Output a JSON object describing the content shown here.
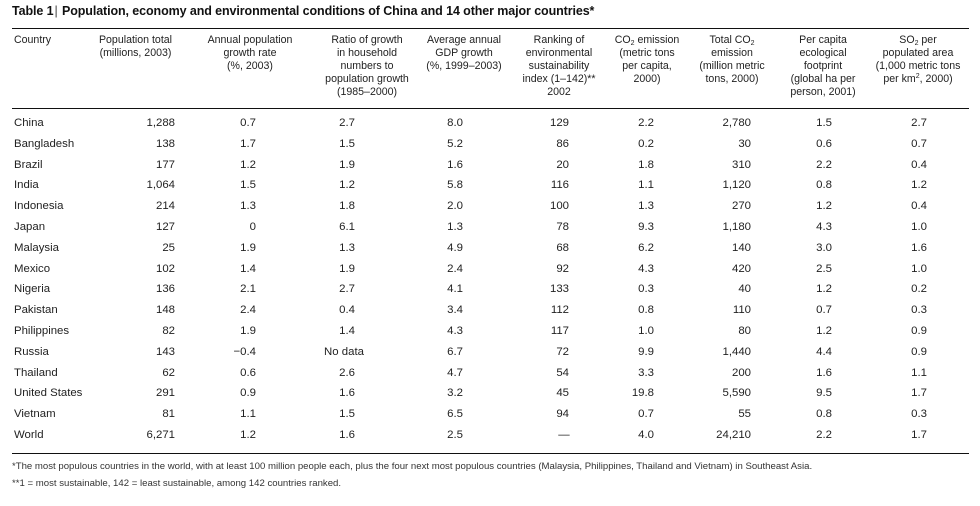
{
  "table": {
    "title_label": "Table 1",
    "title_text": "Population, economy and environmental conditions of China and 14 other major countries*",
    "headers": [
      {
        "lines": [
          "Country"
        ]
      },
      {
        "lines": [
          "Population total",
          "(millions, 2003)"
        ]
      },
      {
        "lines": [
          "Annual population",
          "growth rate",
          "(%, 2003)"
        ]
      },
      {
        "lines": [
          "Ratio of growth",
          "in household",
          "numbers to",
          "population growth",
          "(1985–2000)"
        ]
      },
      {
        "lines": [
          "Average annual",
          "GDP growth",
          "(%, 1999–2003)"
        ]
      },
      {
        "lines": [
          "Ranking of",
          "environmental",
          "sustainability",
          "index (1–142)**",
          "2002"
        ]
      },
      {
        "lines": [
          "CO₂ emission",
          "(metric tons",
          "per capita,",
          "2000)"
        ]
      },
      {
        "lines": [
          "Total CO₂",
          "emission",
          "(million metric",
          "tons, 2000)"
        ]
      },
      {
        "lines": [
          "Per capita",
          "ecological",
          "footprint",
          "(global ha per",
          "person, 2001)"
        ]
      },
      {
        "lines": [
          "SO₂ per",
          "populated area",
          "(1,000 metric tons",
          "per km², 2000)"
        ]
      }
    ],
    "rows": [
      [
        "China",
        "1,288",
        "0.7",
        "2.7",
        "8.0",
        "129",
        "2.2",
        "2,780",
        "1.5",
        "2.7"
      ],
      [
        "Bangladesh",
        "138",
        "1.7",
        "1.5",
        "5.2",
        "86",
        "0.2",
        "30",
        "0.6",
        "0.7"
      ],
      [
        "Brazil",
        "177",
        "1.2",
        "1.9",
        "1.6",
        "20",
        "1.8",
        "310",
        "2.2",
        "0.4"
      ],
      [
        "India",
        "1,064",
        "1.5",
        "1.2",
        "5.8",
        "116",
        "1.1",
        "1,120",
        "0.8",
        "1.2"
      ],
      [
        "Indonesia",
        "214",
        "1.3",
        "1.8",
        "2.0",
        "100",
        "1.3",
        "270",
        "1.2",
        "0.4"
      ],
      [
        "Japan",
        "127",
        "0",
        "6.1",
        "1.3",
        "78",
        "9.3",
        "1,180",
        "4.3",
        "1.0"
      ],
      [
        "Malaysia",
        "25",
        "1.9",
        "1.3",
        "4.9",
        "68",
        "6.2",
        "140",
        "3.0",
        "1.6"
      ],
      [
        "Mexico",
        "102",
        "1.4",
        "1.9",
        "2.4",
        "92",
        "4.3",
        "420",
        "2.5",
        "1.0"
      ],
      [
        "Nigeria",
        "136",
        "2.1",
        "2.7",
        "4.1",
        "133",
        "0.3",
        "40",
        "1.2",
        "0.2"
      ],
      [
        "Pakistan",
        "148",
        "2.4",
        "0.4",
        "3.4",
        "112",
        "0.8",
        "110",
        "0.7",
        "0.3"
      ],
      [
        "Philippines",
        "82",
        "1.9",
        "1.4",
        "4.3",
        "117",
        "1.0",
        "80",
        "1.2",
        "0.9"
      ],
      [
        "Russia",
        "143",
        "−0.4",
        "No data",
        "6.7",
        "72",
        "9.9",
        "1,440",
        "4.4",
        "0.9"
      ],
      [
        "Thailand",
        "62",
        "0.6",
        "2.6",
        "4.7",
        "54",
        "3.3",
        "200",
        "1.6",
        "1.1"
      ],
      [
        "United States",
        "291",
        "0.9",
        "1.6",
        "3.2",
        "45",
        "19.8",
        "5,590",
        "9.5",
        "1.7"
      ],
      [
        "Vietnam",
        "81",
        "1.1",
        "1.5",
        "6.5",
        "94",
        "0.7",
        "55",
        "0.8",
        "0.3"
      ],
      [
        "World",
        "6,271",
        "1.2",
        "1.6",
        "2.5",
        "—",
        "4.0",
        "24,210",
        "2.2",
        "1.7"
      ]
    ],
    "footnotes": [
      "*The most populous countries in the world, with at least 100 million people each, plus the four next most populous countries (Malaysia, Philippines, Thailand and Vietnam) in Southeast Asia.",
      "**1 = most sustainable, 142 = least sustainable, among 142 countries ranked."
    ]
  }
}
